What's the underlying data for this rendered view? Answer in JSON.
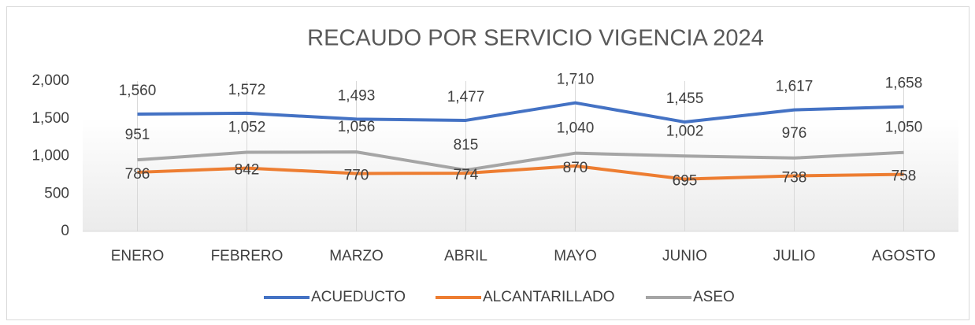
{
  "chart_data": {
    "type": "line",
    "title": "RECAUDO POR SERVICIO VIGENCIA 2024",
    "categories": [
      "ENERO",
      "FEBRERO",
      "MARZO",
      "ABRIL",
      "MAYO",
      "JUNIO",
      "JULIO",
      "AGOSTO"
    ],
    "series": [
      {
        "name": "ACUEDUCTO",
        "color": "#4472c4",
        "values": [
          1560,
          1572,
          1493,
          1477,
          1710,
          1455,
          1617,
          1658
        ],
        "value_labels": [
          "1,560",
          "1,572",
          "1,493",
          "1,477",
          "1,710",
          "1,455",
          "1,617",
          "1,658"
        ]
      },
      {
        "name": "ALCANTARILLADO",
        "color": "#ed7d31",
        "values": [
          786,
          842,
          770,
          774,
          870,
          695,
          738,
          758
        ]
      },
      {
        "name": "ASEO",
        "color": "#a5a5a5",
        "values": [
          951,
          1052,
          1056,
          815,
          1040,
          1002,
          976,
          1050
        ],
        "value_labels": [
          "951",
          "1,052",
          "1,056",
          "815",
          "1,040",
          "1,002",
          "976",
          "1,050"
        ]
      }
    ],
    "ylim": [
      0,
      2000
    ],
    "yticks": [
      0,
      500,
      {
        "value": 1000,
        "label": "1,000"
      },
      {
        "value": 1500,
        "label": "1,500"
      },
      {
        "value": 2000,
        "label": "2,000"
      }
    ],
    "grid": true,
    "legend": "bottom"
  }
}
